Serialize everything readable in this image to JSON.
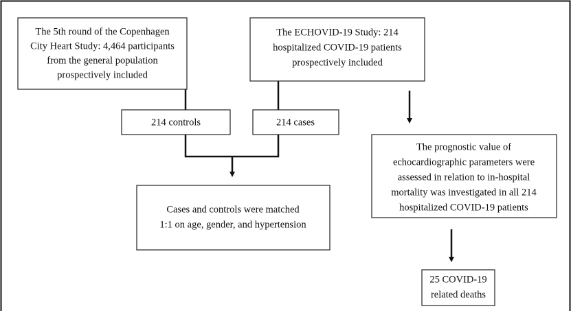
{
  "nodes": [
    {
      "lines": [
        "The 5th round of the Copenhagen",
        "City Heart Study: 4,464 participants",
        "from the general population",
        "prospectively included"
      ]
    },
    {
      "lines": [
        "The ECHOVID-19 Study: 214",
        "hospitalized COVID-19 patients",
        "prospectively included"
      ]
    },
    {
      "lines": [
        "214 controls"
      ]
    },
    {
      "lines": [
        "214 cases"
      ]
    },
    {
      "lines": [
        "Cases and controls were matched",
        "1:1 on age, gender, and hypertension"
      ]
    },
    {
      "lines": [
        "The prognostic value of",
        "echocardiographic parameters were",
        "assessed in relation to in-hospital",
        "mortality was investigated in all 214",
        "hospitalized COVID-19 patients"
      ]
    },
    {
      "lines": [
        "25 COVID-19",
        "related deaths"
      ]
    }
  ]
}
